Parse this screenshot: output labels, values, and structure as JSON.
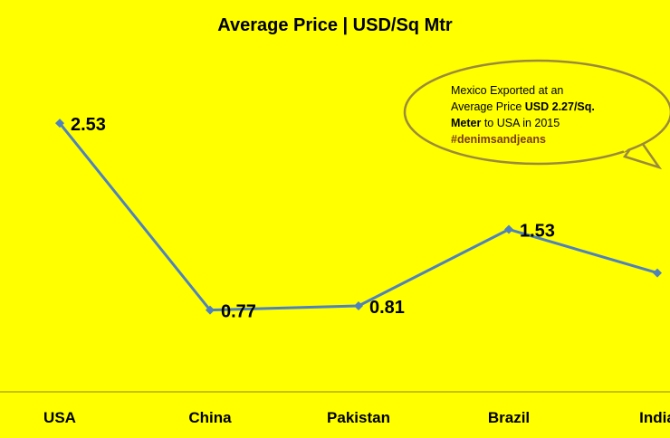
{
  "chart_data": {
    "type": "line",
    "title": "Average Price | USD/Sq Mtr",
    "categories": [
      "USA",
      "China",
      "Pakistan",
      "Brazil",
      "India"
    ],
    "values": [
      2.53,
      0.77,
      0.81,
      1.53,
      1.12
    ],
    "data_labels": [
      "2.53",
      "0.77",
      "0.81",
      "1.53",
      ""
    ],
    "ylim": [
      0,
      3.0
    ],
    "grid": false,
    "legend": "none",
    "colors": {
      "background": "#ffff00",
      "line": "#4f81bd",
      "callout_border": "#9b8a3a",
      "axis": "#8a8a00"
    }
  },
  "callout": {
    "line1": "Mexico Exported at an",
    "line2_prefix": "Average Price ",
    "line2_bold": "USD 2.27/Sq.",
    "line3_bold": "Meter",
    "line3_suffix": " to USA in  2015",
    "hashtag": "#denimsandjeans"
  }
}
